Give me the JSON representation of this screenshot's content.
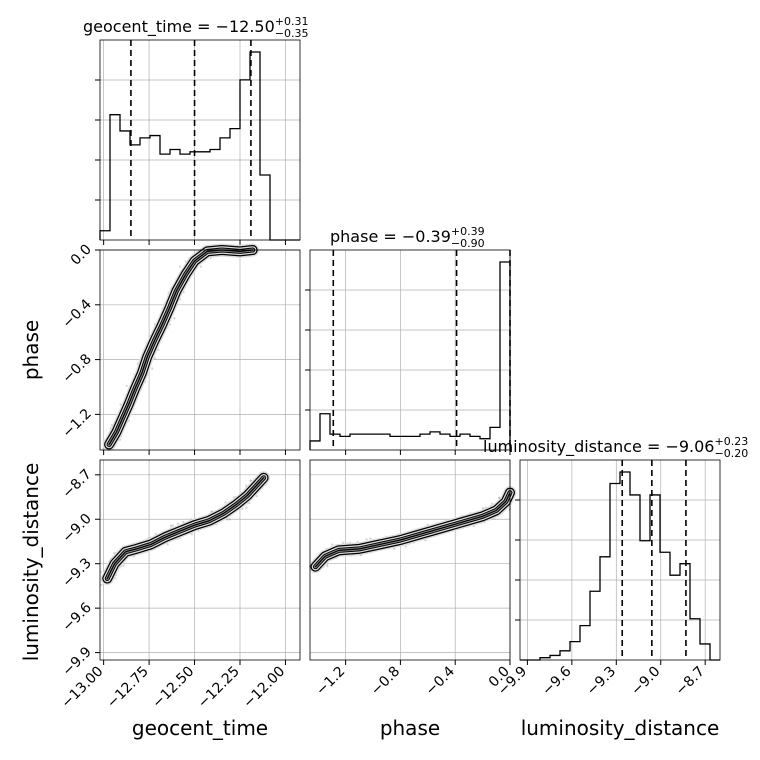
{
  "chart_data": {
    "type": "corner",
    "parameters": [
      "geocent_time",
      "phase",
      "luminosity_distance"
    ],
    "titles": [
      {
        "param": "geocent_time",
        "prefix": "geocent_time = −12.50",
        "upper": "+0.31",
        "lower": "−0.35"
      },
      {
        "param": "phase",
        "prefix": "phase = −0.39",
        "upper": "+0.39",
        "lower": "−0.90"
      },
      {
        "param": "luminosity_distance",
        "prefix": "luminosity_distance = −9.06",
        "upper": "+0.23",
        "lower": "−0.20"
      }
    ],
    "axis_labels": {
      "x": [
        "geocent_time",
        "phase",
        "luminosity_distance"
      ],
      "y": [
        "phase",
        "luminosity_distance"
      ]
    },
    "ranges": {
      "geocent_time": [
        -13.02,
        -11.92
      ],
      "phase": [
        -1.46,
        0.0
      ],
      "luminosity_distance": [
        -9.95,
        -8.6
      ]
    },
    "ticks": {
      "geocent_time": [
        "−13.00",
        "−12.75",
        "−12.50",
        "−12.25",
        "−12.00"
      ],
      "geocent_time_values": [
        -13.0,
        -12.75,
        -12.5,
        -12.25,
        -12.0
      ],
      "phase": [
        "−1.2",
        "−0.8",
        "−0.4",
        "0.0"
      ],
      "phase_values": [
        -1.2,
        -0.8,
        -0.4,
        0.0
      ],
      "luminosity_distance": [
        "−9.9",
        "−9.6",
        "−9.3",
        "−9.0",
        "−8.7"
      ],
      "luminosity_distance_values": [
        -9.9,
        -9.6,
        -9.3,
        -9.0,
        -8.7
      ]
    },
    "quantiles": {
      "geocent_time": [
        -12.85,
        -12.5,
        -12.19
      ],
      "phase": [
        -1.29,
        -0.39,
        0.0
      ],
      "luminosity_distance": [
        -9.26,
        -9.06,
        -8.83
      ]
    },
    "histograms": {
      "geocent_time": {
        "edges": [
          -13.02,
          -12.965,
          -12.91,
          -12.855,
          -12.8,
          -12.745,
          -12.69,
          -12.635,
          -12.58,
          -12.525,
          -12.47,
          -12.415,
          -12.36,
          -12.305,
          -12.25,
          -12.195,
          -12.14,
          -12.085,
          -12.03,
          -11.975,
          -11.92
        ],
        "counts": [
          0.04,
          0.54,
          0.47,
          0.41,
          0.44,
          0.45,
          0.37,
          0.39,
          0.37,
          0.38,
          0.38,
          0.39,
          0.44,
          0.48,
          0.69,
          0.81,
          0.28,
          0,
          0,
          0
        ]
      },
      "phase": {
        "edges": [
          -1.46,
          -1.387,
          -1.314,
          -1.241,
          -1.168,
          -1.095,
          -1.022,
          -0.949,
          -0.876,
          -0.803,
          -0.73,
          -0.657,
          -0.584,
          -0.511,
          -0.438,
          -0.365,
          -0.292,
          -0.219,
          -0.146,
          -0.073,
          0.0
        ],
        "counts": [
          0.04,
          0.16,
          0.07,
          0.06,
          0.07,
          0.07,
          0.07,
          0.07,
          0.06,
          0.06,
          0.06,
          0.07,
          0.08,
          0.07,
          0.06,
          0.07,
          0.06,
          0.05,
          0.1,
          0.83
        ]
      },
      "luminosity_distance": {
        "edges": [
          -9.95,
          -9.8825,
          -9.815,
          -9.7475,
          -9.68,
          -9.6125,
          -9.545,
          -9.4775,
          -9.41,
          -9.3425,
          -9.275,
          -9.2075,
          -9.14,
          -9.0725,
          -9.005,
          -8.9375,
          -8.87,
          -8.8025,
          -8.735,
          -8.6675,
          -8.6
        ],
        "counts": [
          0.0,
          0.0,
          0.01,
          0.02,
          0.04,
          0.08,
          0.15,
          0.3,
          0.45,
          0.77,
          0.82,
          0.72,
          0.52,
          0.72,
          0.47,
          0.37,
          0.42,
          0.18,
          0.07,
          0.0
        ]
      }
    },
    "contours": {
      "phase_vs_geocent_time": [
        {
          "x": -12.97,
          "y": -1.42
        },
        {
          "x": -12.93,
          "y": -1.33
        },
        {
          "x": -12.9,
          "y": -1.24
        },
        {
          "x": -12.86,
          "y": -1.12
        },
        {
          "x": -12.83,
          "y": -1.02
        },
        {
          "x": -12.79,
          "y": -0.9
        },
        {
          "x": -12.76,
          "y": -0.78
        },
        {
          "x": -12.72,
          "y": -0.66
        },
        {
          "x": -12.68,
          "y": -0.55
        },
        {
          "x": -12.64,
          "y": -0.43
        },
        {
          "x": -12.6,
          "y": -0.3
        },
        {
          "x": -12.55,
          "y": -0.18
        },
        {
          "x": -12.5,
          "y": -0.08
        },
        {
          "x": -12.43,
          "y": -0.01
        },
        {
          "x": -12.35,
          "y": 0.0
        },
        {
          "x": -12.25,
          "y": -0.01
        },
        {
          "x": -12.18,
          "y": 0.0
        }
      ],
      "luminosity_distance_vs_geocent_time": [
        {
          "x": -12.98,
          "y": -9.4
        },
        {
          "x": -12.94,
          "y": -9.3
        },
        {
          "x": -12.88,
          "y": -9.22
        },
        {
          "x": -12.82,
          "y": -9.2
        },
        {
          "x": -12.74,
          "y": -9.17
        },
        {
          "x": -12.66,
          "y": -9.12
        },
        {
          "x": -12.58,
          "y": -9.08
        },
        {
          "x": -12.5,
          "y": -9.04
        },
        {
          "x": -12.42,
          "y": -9.01
        },
        {
          "x": -12.34,
          "y": -8.96
        },
        {
          "x": -12.27,
          "y": -8.9
        },
        {
          "x": -12.21,
          "y": -8.84
        },
        {
          "x": -12.15,
          "y": -8.76
        },
        {
          "x": -12.12,
          "y": -8.72
        }
      ],
      "luminosity_distance_vs_phase": [
        {
          "x": -1.42,
          "y": -9.32
        },
        {
          "x": -1.35,
          "y": -9.25
        },
        {
          "x": -1.25,
          "y": -9.21
        },
        {
          "x": -1.1,
          "y": -9.2
        },
        {
          "x": -0.95,
          "y": -9.17
        },
        {
          "x": -0.8,
          "y": -9.14
        },
        {
          "x": -0.65,
          "y": -9.1
        },
        {
          "x": -0.5,
          "y": -9.06
        },
        {
          "x": -0.35,
          "y": -9.02
        },
        {
          "x": -0.2,
          "y": -8.98
        },
        {
          "x": -0.1,
          "y": -8.94
        },
        {
          "x": -0.03,
          "y": -8.88
        },
        {
          "x": 0.0,
          "y": -8.82
        }
      ]
    },
    "grid": true,
    "colors": {
      "line": "#000000",
      "grid": "#b0b0b0",
      "scatter": "#808080",
      "fill_dark": "#000000",
      "fill_mid": "#8c8c8c",
      "fill_light": "#dcdcdc"
    }
  }
}
